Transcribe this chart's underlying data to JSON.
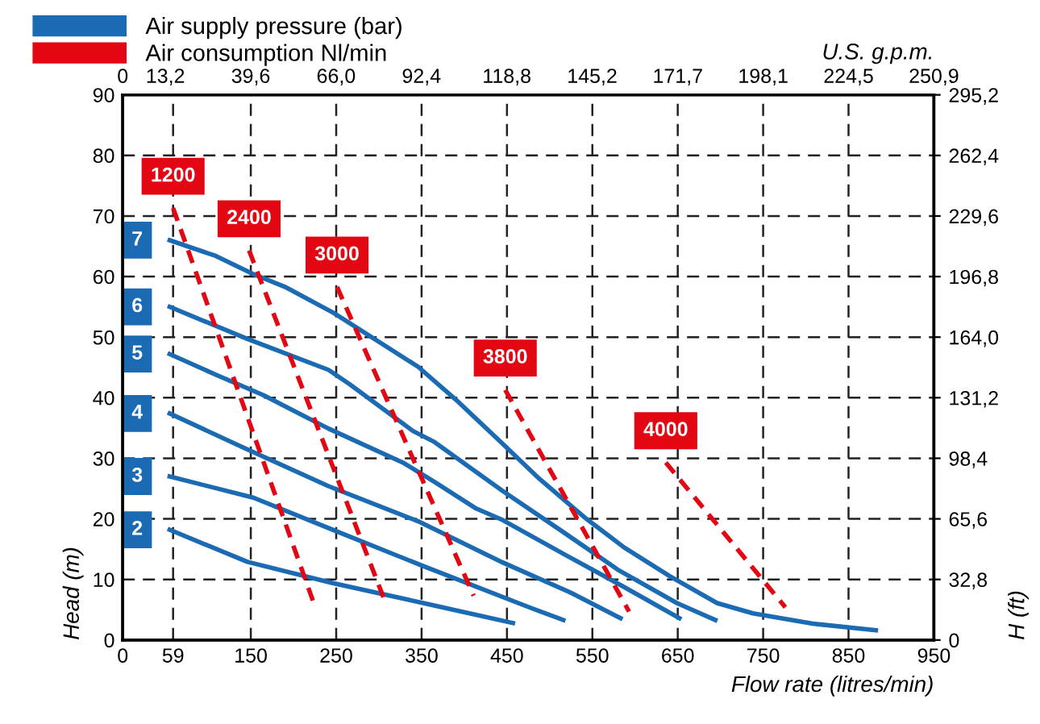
{
  "chart_data": {
    "type": "line",
    "xlabel": "Flow rate (litres/min)",
    "ylabel": "Head (m)",
    "y2label": "H (ft)",
    "x2label": "U.S. g.p.m.",
    "xlim": [
      0,
      950
    ],
    "xticks": [
      0,
      59,
      150,
      250,
      350,
      450,
      550,
      650,
      750,
      850,
      950
    ],
    "ylim": [
      0,
      90
    ],
    "yticks": [
      0,
      10,
      20,
      30,
      40,
      50,
      60,
      70,
      80,
      90
    ],
    "y2lim": [
      0,
      295.2
    ],
    "y2ticks": [
      {
        "value": 0,
        "label": "0"
      },
      {
        "value": 32.8,
        "label": "32,8"
      },
      {
        "value": 65.6,
        "label": "65,6"
      },
      {
        "value": 98.4,
        "label": "98,4"
      },
      {
        "value": 131.2,
        "label": "131,2"
      },
      {
        "value": 164.0,
        "label": "164,0"
      },
      {
        "value": 196.8,
        "label": "196,8"
      },
      {
        "value": 229.6,
        "label": "229,6"
      },
      {
        "value": 262.4,
        "label": "262,4"
      },
      {
        "value": 295.2,
        "label": "295,2"
      }
    ],
    "x2lim": [
      0,
      250.9
    ],
    "x2ticks": [
      {
        "value": 0,
        "label": "0"
      },
      {
        "value": 13.2,
        "label": "13,2"
      },
      {
        "value": 39.6,
        "label": "39,6"
      },
      {
        "value": 66.0,
        "label": "66,0"
      },
      {
        "value": 92.4,
        "label": "92,4"
      },
      {
        "value": 118.8,
        "label": "118,8"
      },
      {
        "value": 145.2,
        "label": "145,2"
      },
      {
        "value": 171.7,
        "label": "171,7"
      },
      {
        "value": 198.1,
        "label": "198,1"
      },
      {
        "value": 224.5,
        "label": "224,5"
      },
      {
        "value": 250.9,
        "label": "250,9"
      }
    ],
    "grid": true,
    "legend": "left",
    "marker": "none",
    "annotations": [
      "Air supply pressure (bar)",
      "Air consumption Nl/min"
    ],
    "series": [
      {
        "name": "7",
        "color": "#1a6bb3",
        "line_style": "solid",
        "x": [
          55,
          109,
          153,
          190,
          247,
          346,
          390,
          445,
          488,
          543,
          587,
          641,
          696,
          738,
          808,
          882
        ],
        "values": [
          66,
          63.4,
          60.4,
          58.3,
          54,
          45.1,
          39.7,
          32.4,
          26.6,
          20,
          15.3,
          10.5,
          6.1,
          4.4,
          2.7,
          1.6
        ]
      },
      {
        "name": "6",
        "color": "#1a6bb3",
        "line_style": "solid",
        "x": [
          55,
          146,
          241,
          266,
          340,
          365,
          445,
          512,
          581,
          649,
          694
        ],
        "values": [
          55,
          49.7,
          44.6,
          42.2,
          34.5,
          32.7,
          24.6,
          18.2,
          11.5,
          6.1,
          3.3
        ]
      },
      {
        "name": "5",
        "color": "#1a6bb3",
        "line_style": "solid",
        "x": [
          55,
          109,
          165,
          241,
          328,
          365,
          414,
          445,
          519,
          584,
          652
        ],
        "values": [
          47.2,
          43.8,
          40.4,
          34.9,
          29.3,
          26.1,
          21.7,
          19.8,
          14,
          9,
          3.6
        ]
      },
      {
        "name": "4",
        "color": "#1a6bb3",
        "line_style": "solid",
        "x": [
          55,
          141,
          241,
          346,
          445,
          525,
          583
        ],
        "values": [
          37.4,
          31.8,
          25.4,
          19.6,
          12.8,
          7.8,
          3.6
        ]
      },
      {
        "name": "3",
        "color": "#1a6bb3",
        "line_style": "solid",
        "x": [
          55,
          153,
          246,
          352,
          476,
          516
        ],
        "values": [
          27,
          23.5,
          18.2,
          12.2,
          5.4,
          3.3
        ]
      },
      {
        "name": "2",
        "color": "#1a6bb3",
        "line_style": "solid",
        "x": [
          55,
          146,
          246,
          352,
          457
        ],
        "values": [
          18.2,
          12.9,
          9.4,
          6.1,
          2.8
        ]
      },
      {
        "name": "1200",
        "color": "#e30613",
        "line_style": "dashed",
        "x": [
          59,
          225
        ],
        "values": [
          71.3,
          5.6
        ]
      },
      {
        "name": "2400",
        "color": "#e30613",
        "line_style": "dashed",
        "x": [
          148,
          308
        ],
        "values": [
          64.3,
          6.1
        ]
      },
      {
        "name": "3000",
        "color": "#e30613",
        "line_style": "dashed",
        "x": [
          251,
          411
        ],
        "values": [
          58.3,
          7.3
        ]
      },
      {
        "name": "3800",
        "color": "#e30613",
        "line_style": "dashed",
        "x": [
          448,
          593
        ],
        "values": [
          41.3,
          4.7
        ]
      },
      {
        "name": "4000",
        "color": "#e30613",
        "line_style": "dashed",
        "x": [
          636,
          776
        ],
        "values": [
          29.3,
          5.4
        ]
      }
    ]
  }
}
